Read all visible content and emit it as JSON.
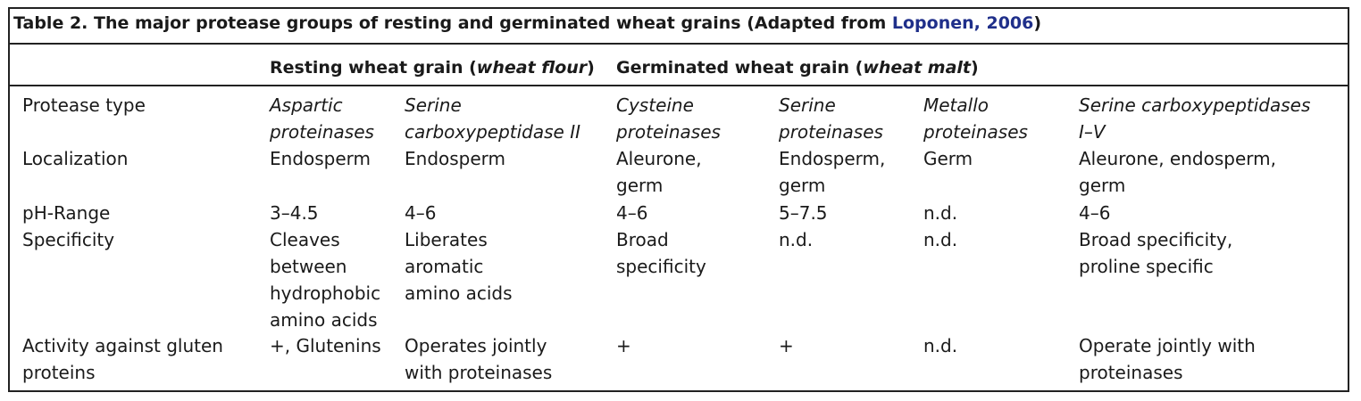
{
  "caption": {
    "prefix": "Table 2. The major protease groups of resting and germinated wheat grains (Adapted from ",
    "reference": "Loponen, 2006",
    "suffix": ")"
  },
  "group_headers": {
    "resting": {
      "text": "Resting wheat grain (",
      "italic": "wheat flour",
      "close": ")"
    },
    "germinated": {
      "text": "Germinated wheat grain (",
      "italic": "wheat malt",
      "close": ")"
    }
  },
  "rows": {
    "protease_type": {
      "label": "Protease type",
      "cells": [
        "Aspartic\nproteinases",
        "Serine\ncarboxypeptidase II",
        "Cysteine\nproteinases",
        "Serine\nproteinases",
        "Metallo\nproteinases",
        "Serine carboxypeptidases\nI–V"
      ]
    },
    "localization": {
      "label": "Localization",
      "cells": [
        "Endosperm",
        "Endosperm",
        "Aleurone,\ngerm",
        "Endosperm,\ngerm",
        "Germ",
        "Aleurone, endosperm,\ngerm"
      ]
    },
    "ph_range": {
      "label": "pH-Range",
      "cells": [
        "3–4.5",
        "4–6",
        "4–6",
        "5–7.5",
        "n.d.",
        "4–6"
      ]
    },
    "specificity": {
      "label": "Specificity",
      "cells": [
        "Cleaves\nbetween\nhydrophobic\namino acids",
        "Liberates\naromatic\namino acids",
        "Broad\nspecificity",
        "n.d.",
        "n.d.",
        "Broad specificity,\nproline specific"
      ]
    },
    "activity": {
      "label": "Activity against gluten\nproteins",
      "cells": [
        "+, Glutenins",
        "Operates jointly\nwith proteinases",
        "+",
        "+",
        "n.d.",
        "Operate jointly with\nproteinases"
      ]
    }
  }
}
